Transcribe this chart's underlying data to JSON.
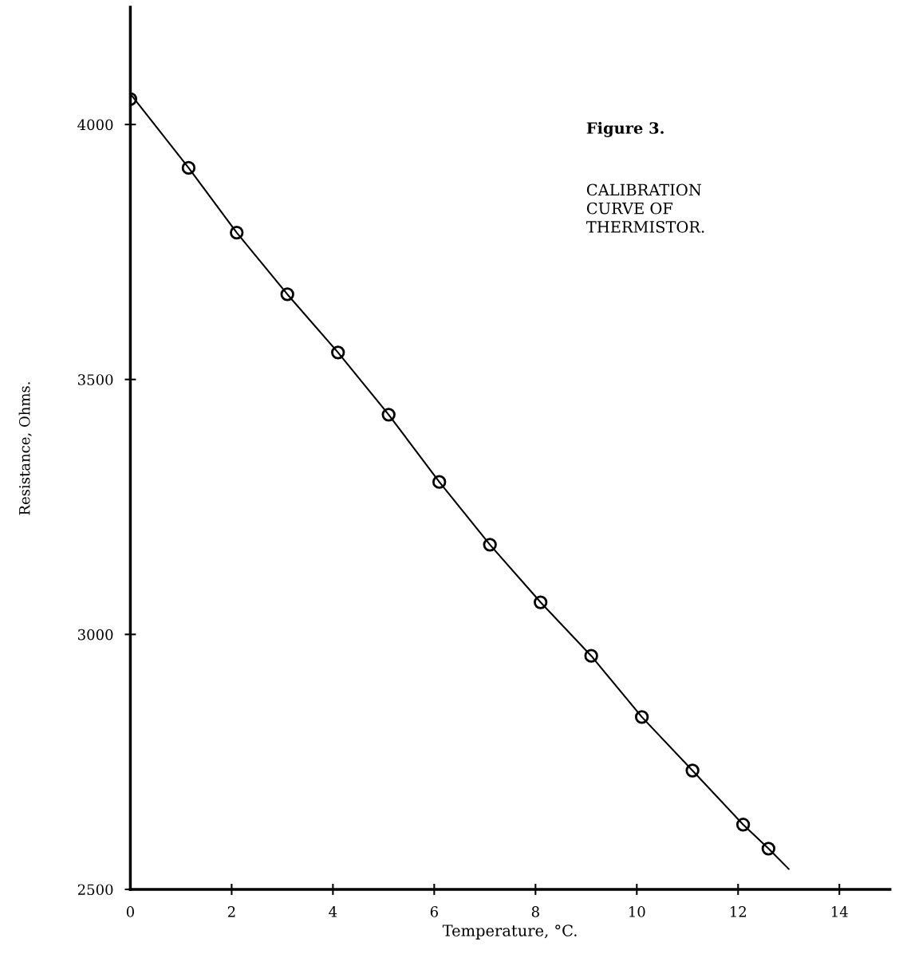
{
  "chart_data": {
    "type": "scatter",
    "xlabel": "Temperature, °C.",
    "ylabel": "Resistance, Ohms.",
    "annotations": [
      "Figure 3.",
      "CALIBRATION\nCURVE OF\nTHERMISTOR."
    ],
    "series": [
      {
        "color": "#000000",
        "marker": "circle",
        "x": [
          0,
          1.15,
          2.1,
          3.1,
          4.1,
          5.1,
          6.1,
          7.1,
          8.1,
          9.1,
          10.1,
          11.1,
          12.1,
          12.6
        ],
        "values": [
          4050,
          3915,
          3788,
          3667,
          3553,
          3431,
          3299,
          3176,
          3063,
          2958,
          2838,
          2733,
          2627,
          2580
        ]
      },
      {
        "type": "line",
        "color": "#000000",
        "line_style": "solid",
        "x": [
          0,
          1.15,
          2.1,
          3.1,
          4.1,
          5.1,
          6.1,
          7.1,
          8.1,
          9.1,
          10.1,
          11.1,
          12.1,
          12.6,
          13
        ],
        "values": [
          4060,
          3915,
          3788,
          3667,
          3553,
          3431,
          3299,
          3176,
          3063,
          2958,
          2838,
          2733,
          2627,
          2580,
          2540
        ]
      }
    ],
    "xlim": [
      0,
      15
    ],
    "xticks": [
      0,
      2,
      4,
      6,
      8,
      10,
      12,
      14
    ],
    "ylim": [
      2500,
      4230
    ],
    "yticks": [
      2500,
      3000,
      3500,
      4000
    ],
    "grid": false
  }
}
